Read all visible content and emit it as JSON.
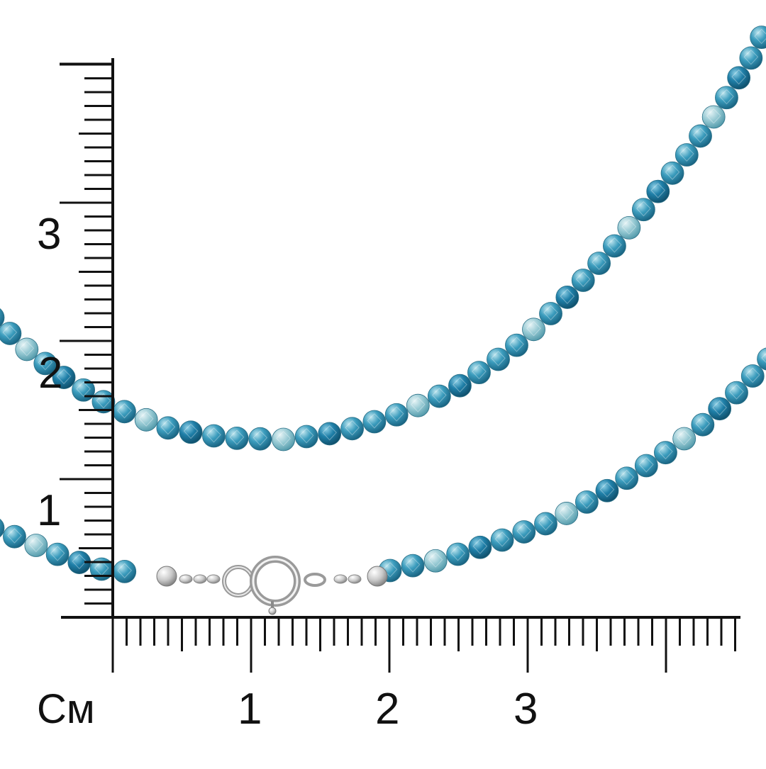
{
  "unit_label": "См",
  "x_axis": {
    "labels": [
      "1",
      "2",
      "3"
    ],
    "major_count": 4,
    "minor_per_major": 10
  },
  "y_axis": {
    "labels": [
      "1",
      "2",
      "3"
    ],
    "minor_per_major": 10
  },
  "colors": {
    "background": "#ffffff",
    "ruler": "#111111",
    "bead_main": "#2f8fb0",
    "bead_light": "#8fc6d2",
    "bead_dark": "#1f6e8f",
    "clasp_metal": "#c8c8c8"
  },
  "objects": {
    "necklace": "beaded-necklace",
    "clasp": "spring-ring-clasp"
  }
}
